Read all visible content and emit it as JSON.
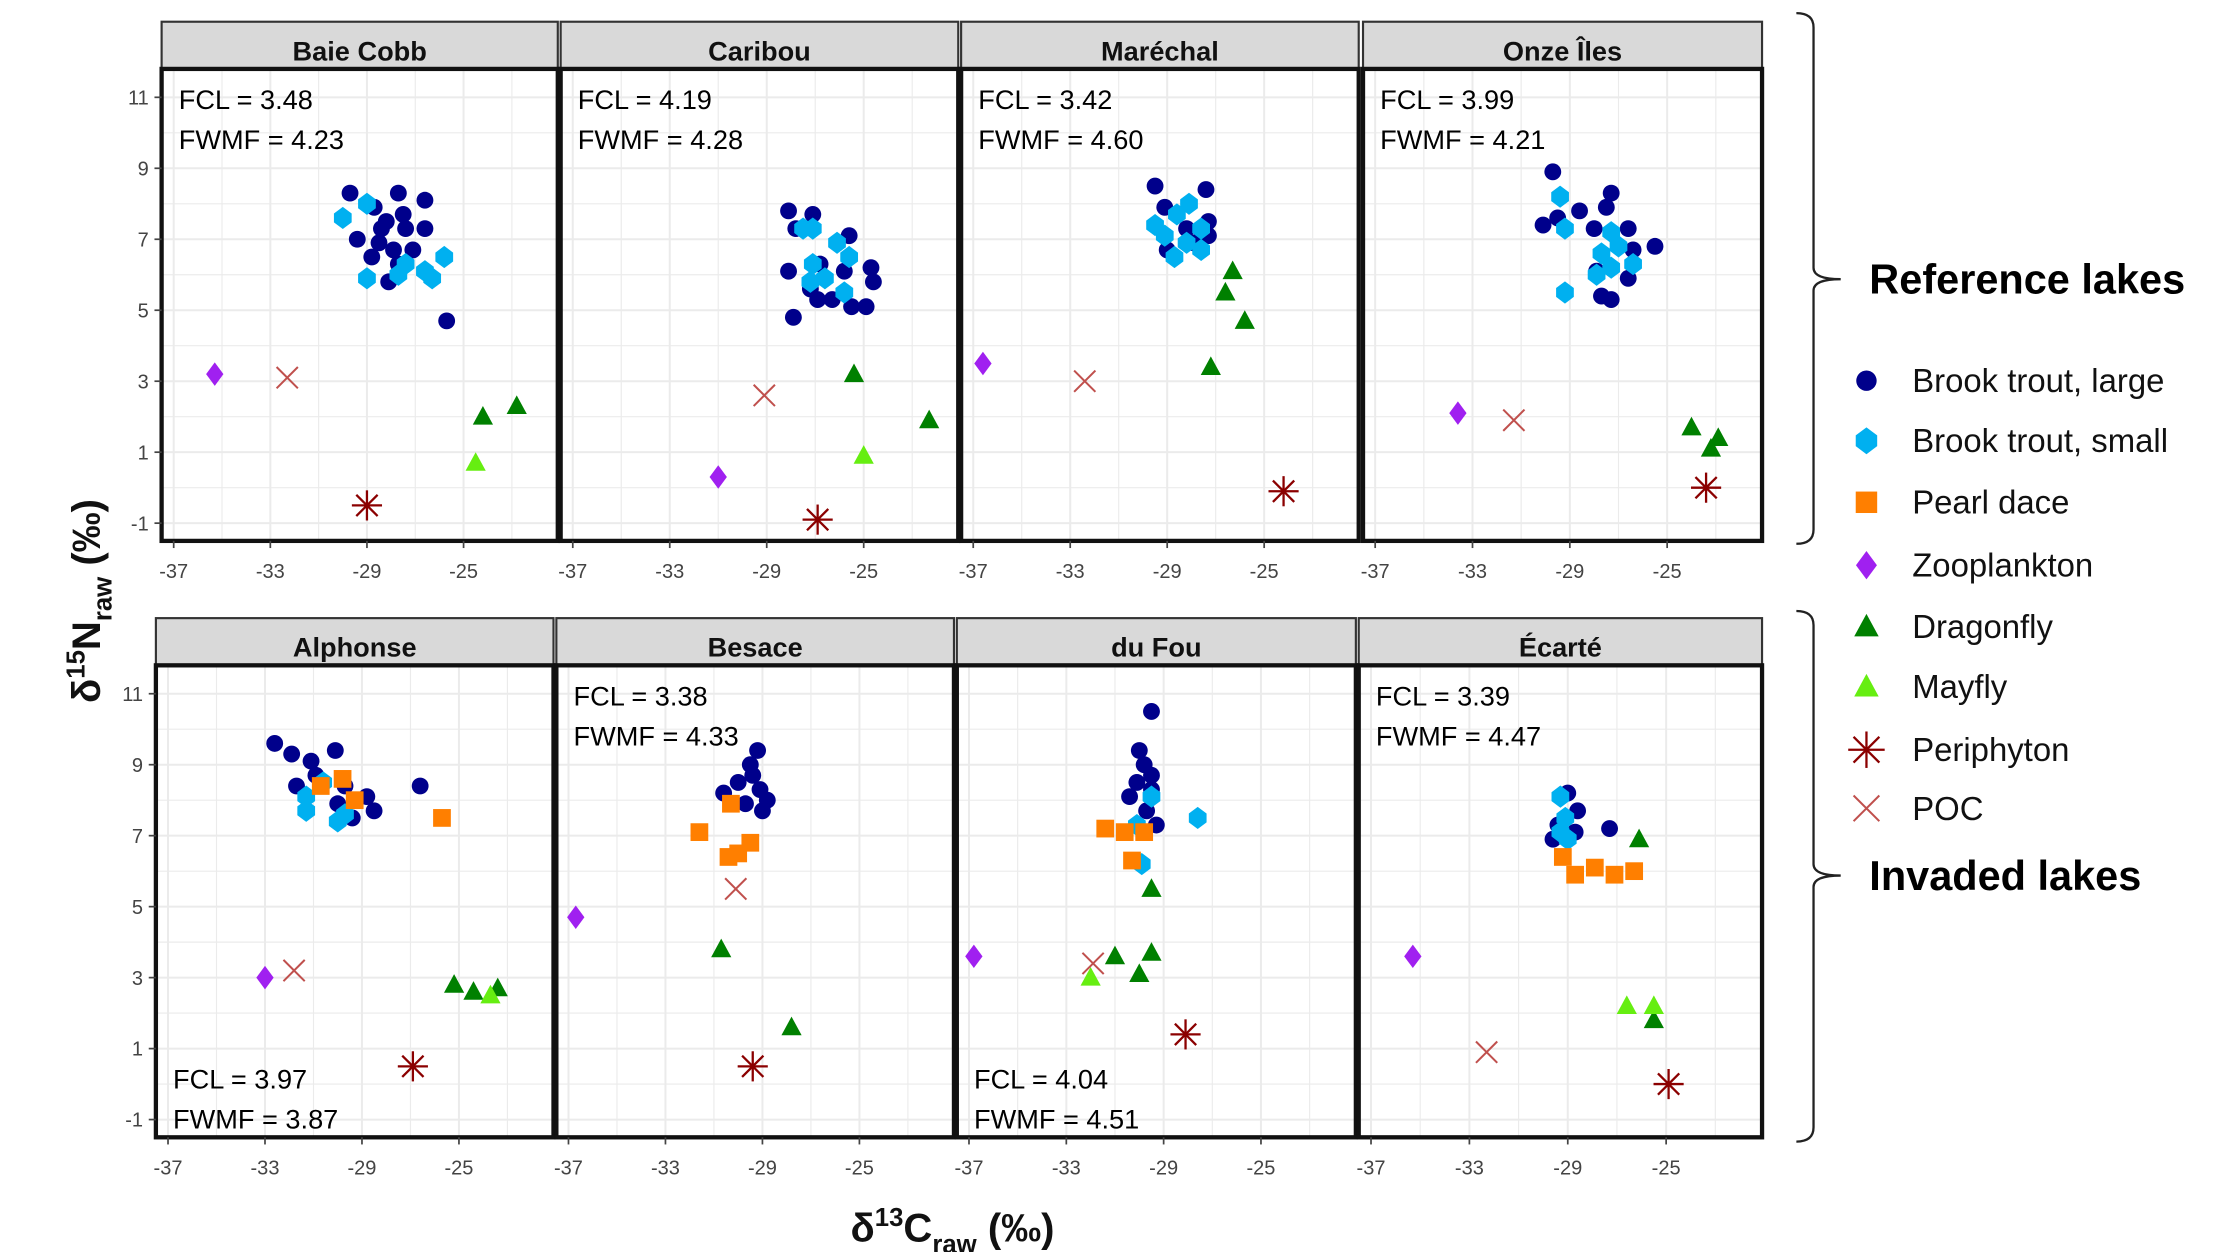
{
  "chart_data": {
    "type": "scatter",
    "facets": "2x4 grid of lake panels",
    "x_title": {
      "delta": "δ",
      "sup": "13",
      "base": "C",
      "sub": "raw",
      "unit": " (‰)"
    },
    "y_title": {
      "delta": "δ",
      "sup": "15",
      "base": "N",
      "sub": "raw",
      "unit": " (‰)"
    },
    "xlim": [
      -37.5,
      -21.1
    ],
    "ylim": [
      -1.5,
      11.8
    ],
    "x_ticks": [
      "-37",
      "-33",
      "-29",
      "-25"
    ],
    "x_tick_values": [
      -37,
      -33,
      -29,
      -25
    ],
    "y_ticks": [
      "11",
      "9",
      "7",
      "5",
      "3",
      "1",
      "-1"
    ],
    "y_tick_values": [
      11,
      9,
      7,
      5,
      3,
      1,
      -1
    ],
    "grid": true,
    "legend_position": "right",
    "colors": {
      "large": "#00008B",
      "small": "#00B0F0",
      "dace": "#FF7F00",
      "zoo": "#A020F0",
      "dragonfly": "#008000",
      "mayfly": "#66EE11",
      "periphyton": "#8B0000",
      "poc": "#C0504D",
      "strip": "#D9D9D9",
      "grid": "#EBEBEB"
    },
    "legend": [
      {
        "key": "large",
        "label": "Brook trout, large",
        "shape": "circle"
      },
      {
        "key": "small",
        "label": "Brook trout, small",
        "shape": "hexagon"
      },
      {
        "key": "dace",
        "label": "Pearl dace",
        "shape": "square"
      },
      {
        "key": "zoo",
        "label": "Zooplankton",
        "shape": "diamond"
      },
      {
        "key": "dragonfly",
        "label": "Dragonfly",
        "shape": "triangle"
      },
      {
        "key": "mayfly",
        "label": "Mayfly",
        "shape": "triangle"
      },
      {
        "key": "periphyton",
        "label": "Periphyton",
        "shape": "asterisk"
      },
      {
        "key": "poc",
        "label": "POC",
        "shape": "cross"
      }
    ],
    "groups": [
      {
        "label": "Reference lakes",
        "row": 0
      },
      {
        "label": "Invaded lakes",
        "row": 1
      }
    ],
    "panels": [
      {
        "name": "Baie Cobb",
        "row": 0,
        "col": 0,
        "fcl": "FCL = 3.48",
        "fwmf": "FWMF = 4.23",
        "annotation": "top-left",
        "points": {
          "large": [
            [
              -29.7,
              8.3
            ],
            [
              -28.7,
              7.9
            ],
            [
              -27.7,
              8.3
            ],
            [
              -26.6,
              8.1
            ],
            [
              -28.2,
              7.5
            ],
            [
              -27.4,
              7.3
            ],
            [
              -26.6,
              7.3
            ],
            [
              -29.4,
              7.0
            ],
            [
              -28.5,
              6.9
            ],
            [
              -27.9,
              6.7
            ],
            [
              -27.1,
              6.7
            ],
            [
              -28.8,
              6.5
            ],
            [
              -27.7,
              6.3
            ],
            [
              -28.1,
              5.8
            ],
            [
              -25.7,
              4.7
            ],
            [
              -28.4,
              7.3
            ],
            [
              -27.5,
              7.7
            ]
          ],
          "small": [
            [
              -30.0,
              7.6
            ],
            [
              -29.0,
              8.0
            ],
            [
              -29.0,
              5.9
            ],
            [
              -27.4,
              6.3
            ],
            [
              -26.6,
              6.1
            ],
            [
              -26.3,
              5.9
            ],
            [
              -25.8,
              6.5
            ],
            [
              -27.7,
              6.0
            ]
          ],
          "dace": [],
          "zoo": [
            [
              -35.3,
              3.2
            ]
          ],
          "dragonfly": [
            [
              -24.2,
              2.0
            ],
            [
              -22.8,
              2.3
            ]
          ],
          "mayfly": [
            [
              -24.5,
              0.7
            ]
          ],
          "periphyton": [
            [
              -29.0,
              -0.5
            ]
          ],
          "poc": [
            [
              -32.3,
              3.1
            ]
          ]
        }
      },
      {
        "name": "Caribou",
        "row": 0,
        "col": 1,
        "fcl": "FCL = 4.19",
        "fwmf": "FWMF = 4.28",
        "annotation": "top-left",
        "points": {
          "large": [
            [
              -28.1,
              7.8
            ],
            [
              -27.1,
              7.7
            ],
            [
              -27.8,
              7.3
            ],
            [
              -25.6,
              7.1
            ],
            [
              -28.1,
              6.1
            ],
            [
              -26.8,
              6.3
            ],
            [
              -25.8,
              6.1
            ],
            [
              -24.7,
              6.2
            ],
            [
              -24.6,
              5.8
            ],
            [
              -27.2,
              5.6
            ],
            [
              -26.3,
              5.3
            ],
            [
              -25.5,
              5.1
            ],
            [
              -24.9,
              5.1
            ],
            [
              -27.9,
              4.8
            ],
            [
              -26.9,
              5.3
            ]
          ],
          "small": [
            [
              -27.5,
              7.3
            ],
            [
              -27.1,
              7.3
            ],
            [
              -26.1,
              6.9
            ],
            [
              -25.6,
              6.5
            ],
            [
              -27.1,
              6.3
            ],
            [
              -27.2,
              5.8
            ],
            [
              -25.8,
              5.5
            ],
            [
              -26.6,
              5.9
            ]
          ],
          "dace": [],
          "zoo": [
            [
              -31.0,
              0.3
            ]
          ],
          "dragonfly": [
            [
              -25.4,
              3.2
            ],
            [
              -22.3,
              1.9
            ]
          ],
          "mayfly": [
            [
              -25.0,
              0.9
            ]
          ],
          "periphyton": [
            [
              -26.9,
              -0.9
            ]
          ],
          "poc": [
            [
              -29.1,
              2.6
            ]
          ]
        }
      },
      {
        "name": "Maréchal",
        "row": 0,
        "col": 2,
        "fcl": "FCL = 3.42",
        "fwmf": "FWMF = 4.60",
        "annotation": "top-left",
        "points": {
          "large": [
            [
              -29.5,
              8.5
            ],
            [
              -27.4,
              8.4
            ],
            [
              -29.1,
              7.9
            ],
            [
              -27.3,
              7.5
            ],
            [
              -27.3,
              7.1
            ],
            [
              -29.0,
              6.7
            ],
            [
              -27.9,
              6.9
            ],
            [
              -28.2,
              7.3
            ]
          ],
          "small": [
            [
              -29.5,
              7.4
            ],
            [
              -28.6,
              7.7
            ],
            [
              -28.1,
              8.0
            ],
            [
              -28.2,
              6.9
            ],
            [
              -27.6,
              6.7
            ],
            [
              -28.7,
              6.5
            ],
            [
              -29.1,
              7.1
            ],
            [
              -27.6,
              7.3
            ]
          ],
          "dace": [],
          "zoo": [
            [
              -36.6,
              3.5
            ]
          ],
          "dragonfly": [
            [
              -26.3,
              6.1
            ],
            [
              -26.6,
              5.5
            ],
            [
              -25.8,
              4.7
            ],
            [
              -27.2,
              3.4
            ]
          ],
          "mayfly": [],
          "periphyton": [
            [
              -24.2,
              -0.1
            ]
          ],
          "poc": [
            [
              -32.4,
              3.0
            ]
          ]
        }
      },
      {
        "name": "Onze Îles",
        "row": 0,
        "col": 3,
        "fcl": "FCL = 3.99",
        "fwmf": "FWMF = 4.21",
        "annotation": "top-left",
        "points": {
          "large": [
            [
              -29.7,
              8.9
            ],
            [
              -27.3,
              8.3
            ],
            [
              -27.5,
              7.9
            ],
            [
              -30.1,
              7.4
            ],
            [
              -29.5,
              7.6
            ],
            [
              -28.6,
              7.8
            ],
            [
              -28.0,
              7.3
            ],
            [
              -26.6,
              7.3
            ],
            [
              -26.4,
              6.7
            ],
            [
              -25.5,
              6.8
            ],
            [
              -26.6,
              5.9
            ],
            [
              -27.7,
              5.4
            ],
            [
              -27.3,
              5.3
            ],
            [
              -27.9,
              6.1
            ]
          ],
          "small": [
            [
              -29.4,
              8.2
            ],
            [
              -29.2,
              7.3
            ],
            [
              -29.2,
              5.5
            ],
            [
              -27.3,
              7.2
            ],
            [
              -27.7,
              6.6
            ],
            [
              -27.3,
              6.2
            ],
            [
              -26.4,
              6.3
            ],
            [
              -27.9,
              6.0
            ],
            [
              -27.0,
              6.8
            ]
          ],
          "dace": [],
          "zoo": [
            [
              -33.6,
              2.1
            ]
          ],
          "dragonfly": [
            [
              -24.0,
              1.7
            ],
            [
              -22.9,
              1.4
            ],
            [
              -23.2,
              1.1
            ]
          ],
          "mayfly": [],
          "periphyton": [
            [
              -23.4,
              0.0
            ]
          ],
          "poc": [
            [
              -31.3,
              1.9
            ]
          ]
        }
      },
      {
        "name": "Alphonse",
        "row": 1,
        "col": 0,
        "fcl": "FCL = 3.97",
        "fwmf": "FWMF = 3.87",
        "annotation": "bottom-left",
        "points": {
          "large": [
            [
              -32.6,
              9.6
            ],
            [
              -31.9,
              9.3
            ],
            [
              -31.1,
              9.1
            ],
            [
              -30.1,
              9.4
            ],
            [
              -31.7,
              8.4
            ],
            [
              -30.9,
              8.7
            ],
            [
              -29.7,
              8.4
            ],
            [
              -28.8,
              8.1
            ],
            [
              -28.5,
              7.7
            ],
            [
              -29.4,
              7.5
            ],
            [
              -26.6,
              8.4
            ],
            [
              -30.0,
              7.9
            ]
          ],
          "small": [
            [
              -31.3,
              8.1
            ],
            [
              -31.3,
              7.7
            ],
            [
              -30.0,
              7.4
            ],
            [
              -30.6,
              8.5
            ],
            [
              -29.7,
              7.6
            ]
          ],
          "dace": [
            [
              -30.7,
              8.4
            ],
            [
              -29.8,
              8.6
            ],
            [
              -29.3,
              8.0
            ],
            [
              -25.7,
              7.5
            ]
          ],
          "zoo": [
            [
              -33.0,
              3.0
            ]
          ],
          "dragonfly": [
            [
              -25.2,
              2.8
            ],
            [
              -24.4,
              2.6
            ],
            [
              -23.4,
              2.7
            ]
          ],
          "mayfly": [
            [
              -23.7,
              2.5
            ]
          ],
          "periphyton": [
            [
              -26.9,
              0.5
            ]
          ],
          "poc": [
            [
              -31.8,
              3.2
            ]
          ]
        }
      },
      {
        "name": "Besace",
        "row": 1,
        "col": 1,
        "fcl": "FCL = 3.38",
        "fwmf": "FWMF = 4.33",
        "annotation": "top-left",
        "points": {
          "large": [
            [
              -29.2,
              9.4
            ],
            [
              -29.5,
              9.0
            ],
            [
              -30.0,
              8.5
            ],
            [
              -29.1,
              8.3
            ],
            [
              -30.6,
              8.2
            ],
            [
              -28.8,
              8.0
            ],
            [
              -29.7,
              7.9
            ],
            [
              -29.0,
              7.7
            ],
            [
              -29.4,
              8.7
            ]
          ],
          "small": [],
          "dace": [
            [
              -30.3,
              7.9
            ],
            [
              -31.6,
              7.1
            ],
            [
              -29.5,
              6.8
            ],
            [
              -30.0,
              6.5
            ],
            [
              -30.4,
              6.4
            ]
          ],
          "zoo": [
            [
              -36.7,
              4.7
            ]
          ],
          "dragonfly": [
            [
              -30.7,
              3.8
            ],
            [
              -27.8,
              1.6
            ]
          ],
          "mayfly": [],
          "periphyton": [
            [
              -29.4,
              0.5
            ]
          ],
          "poc": [
            [
              -30.1,
              5.5
            ]
          ]
        }
      },
      {
        "name": "du Fou",
        "row": 1,
        "col": 2,
        "fcl": "FCL = 4.04",
        "fwmf": "FWMF = 4.51",
        "annotation": "bottom-left",
        "points": {
          "large": [
            [
              -29.5,
              10.5
            ],
            [
              -30.0,
              9.4
            ],
            [
              -29.8,
              9.0
            ],
            [
              -30.1,
              8.5
            ],
            [
              -29.5,
              8.3
            ],
            [
              -30.4,
              8.1
            ],
            [
              -29.7,
              7.7
            ],
            [
              -29.3,
              7.3
            ],
            [
              -29.5,
              8.7
            ]
          ],
          "small": [
            [
              -29.5,
              8.1
            ],
            [
              -27.6,
              7.5
            ],
            [
              -30.1,
              7.3
            ],
            [
              -29.9,
              6.2
            ]
          ],
          "dace": [
            [
              -31.4,
              7.2
            ],
            [
              -30.6,
              7.1
            ],
            [
              -29.8,
              7.1
            ],
            [
              -30.3,
              6.3
            ]
          ],
          "zoo": [
            [
              -36.8,
              3.6
            ]
          ],
          "dragonfly": [
            [
              -29.5,
              5.5
            ],
            [
              -31.0,
              3.6
            ],
            [
              -29.5,
              3.7
            ],
            [
              -30.0,
              3.1
            ]
          ],
          "mayfly": [
            [
              -32.0,
              3.0
            ]
          ],
          "periphyton": [
            [
              -28.1,
              1.4
            ]
          ],
          "poc": [
            [
              -31.9,
              3.4
            ]
          ]
        }
      },
      {
        "name": "Écarté",
        "row": 1,
        "col": 3,
        "fcl": "FCL = 3.39",
        "fwmf": "FWMF = 4.47",
        "annotation": "top-left",
        "points": {
          "large": [
            [
              -29.0,
              8.2
            ],
            [
              -28.6,
              7.7
            ],
            [
              -29.4,
              7.3
            ],
            [
              -27.3,
              7.2
            ],
            [
              -29.6,
              6.9
            ],
            [
              -28.7,
              7.1
            ]
          ],
          "small": [
            [
              -29.3,
              8.1
            ],
            [
              -29.1,
              7.5
            ],
            [
              -29.3,
              7.1
            ],
            [
              -29.0,
              6.9
            ]
          ],
          "dace": [
            [
              -29.2,
              6.4
            ],
            [
              -28.7,
              5.9
            ],
            [
              -27.9,
              6.1
            ],
            [
              -27.1,
              5.9
            ],
            [
              -26.3,
              6.0
            ]
          ],
          "zoo": [
            [
              -35.3,
              3.6
            ]
          ],
          "dragonfly": [
            [
              -26.1,
              6.9
            ],
            [
              -25.5,
              1.8
            ]
          ],
          "mayfly": [
            [
              -26.6,
              2.2
            ],
            [
              -25.5,
              2.2
            ]
          ],
          "periphyton": [
            [
              -24.9,
              0.0
            ]
          ],
          "poc": [
            [
              -32.3,
              0.9
            ]
          ]
        }
      }
    ]
  }
}
